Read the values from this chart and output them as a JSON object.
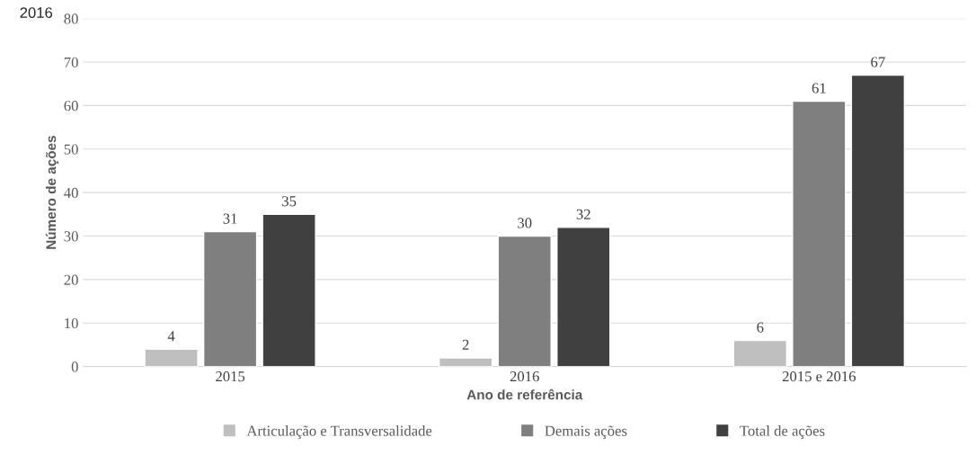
{
  "chart_data": {
    "type": "bar",
    "annotations": [
      "2016"
    ],
    "xlabel": "Ano de referência",
    "ylabel": "Número de ações",
    "categories": [
      "2015",
      "2016",
      "2015 e 2016"
    ],
    "series": [
      {
        "name": "Articulação e Transversalidade",
        "color": "#bfbfbf",
        "values": [
          4,
          2,
          6
        ]
      },
      {
        "name": "Demais ações",
        "color": "#7f7f7f",
        "values": [
          31,
          30,
          61
        ]
      },
      {
        "name": "Total de ações",
        "color": "#404040",
        "values": [
          35,
          32,
          67
        ]
      }
    ],
    "ylim": [
      0,
      80
    ],
    "yticks": [
      0,
      10,
      20,
      30,
      40,
      50,
      60,
      70,
      80
    ],
    "grid": "y",
    "legend": "bottom",
    "data_labels": true
  }
}
